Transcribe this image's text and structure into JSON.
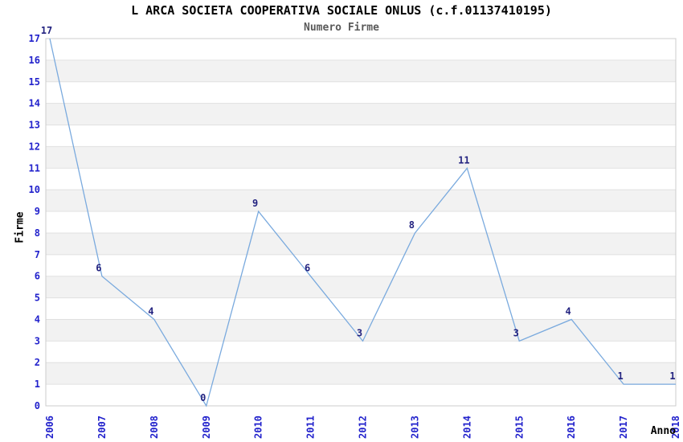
{
  "chart_data": {
    "type": "line",
    "title": "L ARCA SOCIETA COOPERATIVA SOCIALE ONLUS (c.f.01137410195)",
    "subtitle": "Numero Firme",
    "xlabel": "Anno",
    "ylabel": "Firme",
    "x": [
      2006,
      2007,
      2008,
      2009,
      2010,
      2011,
      2012,
      2013,
      2014,
      2015,
      2016,
      2017,
      2018
    ],
    "series": [
      {
        "name": "Numero Firme",
        "values": [
          17,
          6,
          4,
          0,
          9,
          6,
          3,
          8,
          11,
          3,
          4,
          1,
          1
        ]
      }
    ],
    "ylim": [
      0,
      17
    ],
    "ytick_step": 1,
    "grid": "horizontal-alternating-bands",
    "legend_position": "none",
    "point_labels_visible": true,
    "colors": {
      "line": "#7aaade",
      "tick_label": "#2222cc",
      "point_label": "#232380",
      "title": "#000000",
      "subtitle": "#5a5a5a",
      "band_gray": "#f2f2f2",
      "band_white": "#ffffff",
      "gridline": "#e0e0e0",
      "plot_border": "#cccccc",
      "axis_title": "#000000",
      "background": "#ffffff"
    }
  }
}
